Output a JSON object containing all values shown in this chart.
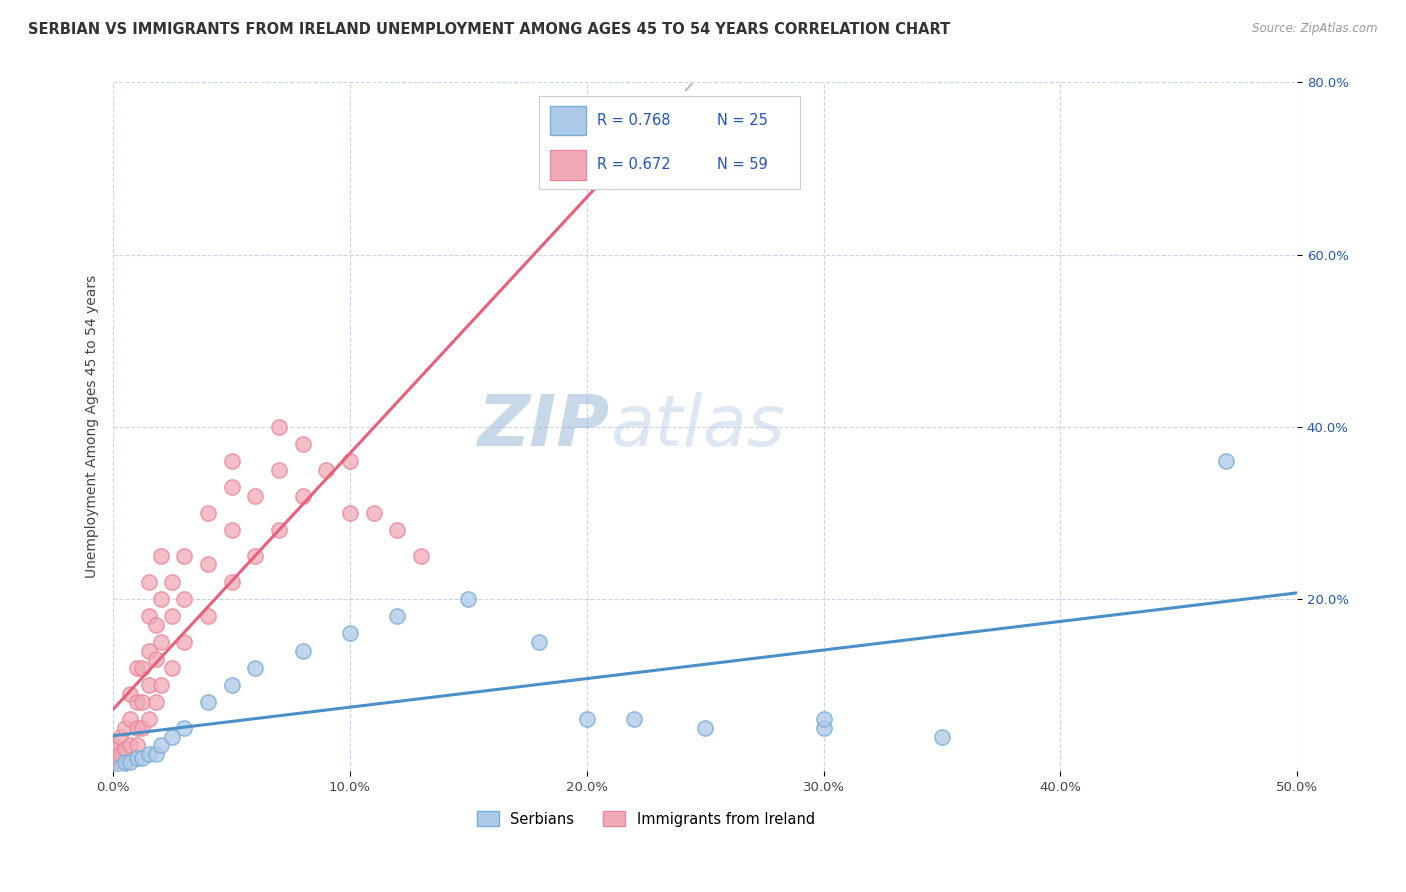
{
  "title": "SERBIAN VS IMMIGRANTS FROM IRELAND UNEMPLOYMENT AMONG AGES 45 TO 54 YEARS CORRELATION CHART",
  "source": "Source: ZipAtlas.com",
  "ylabel": "Unemployment Among Ages 45 to 54 years",
  "xlim": [
    0.0,
    0.5
  ],
  "ylim": [
    0.0,
    0.8
  ],
  "xtick_labels": [
    "0.0%",
    "10.0%",
    "20.0%",
    "30.0%",
    "40.0%",
    "50.0%"
  ],
  "xtick_vals": [
    0.0,
    0.1,
    0.2,
    0.3,
    0.4,
    0.5
  ],
  "ytick_labels": [
    "20.0%",
    "40.0%",
    "60.0%",
    "80.0%"
  ],
  "ytick_vals": [
    0.2,
    0.4,
    0.6,
    0.8
  ],
  "watermark_zip": "ZIP",
  "watermark_atlas": "atlas",
  "legend_R1": "R = 0.768",
  "legend_N1": "N = 25",
  "legend_R2": "R = 0.672",
  "legend_N2": "N = 59",
  "legend_label1": "Serbians",
  "legend_label2": "Immigrants from Ireland",
  "color_serbian": "#adc9e8",
  "color_irish": "#f2aab8",
  "color_serbian_dot_edge": "#7aadd4",
  "color_irish_dot_edge": "#e8889a",
  "color_serbian_line": "#4a90c8",
  "color_irish_line": "#e8607a",
  "color_R_text": "#2255bb",
  "color_ytick": "#2255bb",
  "serbian_scatter_x": [
    0.003,
    0.005,
    0.007,
    0.01,
    0.012,
    0.015,
    0.018,
    0.02,
    0.025,
    0.03,
    0.04,
    0.05,
    0.06,
    0.08,
    0.1,
    0.12,
    0.15,
    0.18,
    0.2,
    0.22,
    0.25,
    0.3,
    0.3,
    0.35,
    0.47
  ],
  "serbian_scatter_y": [
    0.005,
    0.01,
    0.01,
    0.015,
    0.015,
    0.02,
    0.02,
    0.03,
    0.04,
    0.05,
    0.08,
    0.1,
    0.12,
    0.14,
    0.16,
    0.18,
    0.2,
    0.15,
    0.06,
    0.06,
    0.05,
    0.05,
    0.06,
    0.04,
    0.36
  ],
  "irish_scatter_x": [
    0.0,
    0.0,
    0.0,
    0.0,
    0.0,
    0.0,
    0.003,
    0.003,
    0.005,
    0.005,
    0.007,
    0.007,
    0.007,
    0.01,
    0.01,
    0.01,
    0.01,
    0.012,
    0.012,
    0.012,
    0.015,
    0.015,
    0.015,
    0.015,
    0.015,
    0.018,
    0.018,
    0.018,
    0.02,
    0.02,
    0.02,
    0.02,
    0.025,
    0.025,
    0.025,
    0.03,
    0.03,
    0.03,
    0.04,
    0.04,
    0.04,
    0.05,
    0.05,
    0.05,
    0.05,
    0.06,
    0.06,
    0.07,
    0.07,
    0.07,
    0.08,
    0.08,
    0.09,
    0.1,
    0.1,
    0.11,
    0.12,
    0.13,
    0.19
  ],
  "irish_scatter_y": [
    0.005,
    0.01,
    0.015,
    0.02,
    0.025,
    0.03,
    0.02,
    0.04,
    0.025,
    0.05,
    0.03,
    0.06,
    0.09,
    0.03,
    0.05,
    0.08,
    0.12,
    0.05,
    0.08,
    0.12,
    0.06,
    0.1,
    0.14,
    0.18,
    0.22,
    0.08,
    0.13,
    0.17,
    0.1,
    0.15,
    0.2,
    0.25,
    0.12,
    0.18,
    0.22,
    0.15,
    0.2,
    0.25,
    0.18,
    0.24,
    0.3,
    0.22,
    0.28,
    0.33,
    0.36,
    0.25,
    0.32,
    0.28,
    0.35,
    0.4,
    0.32,
    0.38,
    0.35,
    0.3,
    0.36,
    0.3,
    0.28,
    0.25,
    0.69
  ],
  "background_color": "#ffffff",
  "grid_color": "#c8d4e8",
  "title_fontsize": 10.5,
  "axis_label_fontsize": 10,
  "tick_fontsize": 9.5,
  "legend_fontsize": 10.5,
  "watermark_fontsize_zip": 52,
  "watermark_fontsize_atlas": 52
}
